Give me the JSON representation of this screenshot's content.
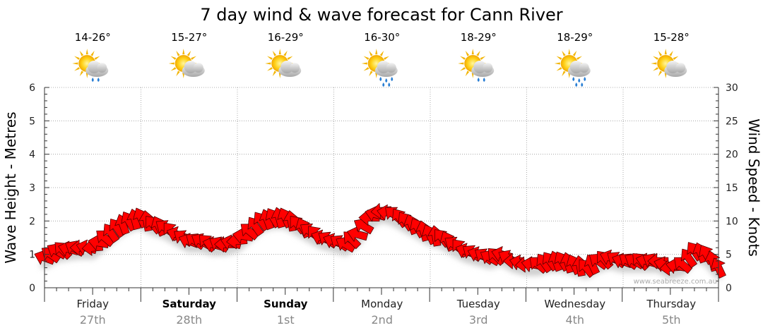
{
  "title": "7 day wind & wave forecast for Cann River",
  "watermark": "www.seabreeze.com.au",
  "colors": {
    "arrow_fill": "#ff0000",
    "arrow_stroke": "#550000",
    "shadow": "#cccccc",
    "grid": "#999999",
    "day_date": "#888888"
  },
  "days": [
    {
      "name": "Friday",
      "date": "27th",
      "bold": false,
      "temp": "14-26°",
      "icon": "sun-cloud-showers-icon"
    },
    {
      "name": "Saturday",
      "date": "28th",
      "bold": true,
      "temp": "15-27°",
      "icon": "sun-cloud-icon"
    },
    {
      "name": "Sunday",
      "date": "1st",
      "bold": true,
      "temp": "16-29°",
      "icon": "sun-cloud-icon"
    },
    {
      "name": "Monday",
      "date": "2nd",
      "bold": false,
      "temp": "16-30°",
      "icon": "sun-cloud-rain-icon"
    },
    {
      "name": "Tuesday",
      "date": "3rd",
      "bold": false,
      "temp": "18-29°",
      "icon": "sun-cloud-showers-icon"
    },
    {
      "name": "Wednesday",
      "date": "4th",
      "bold": false,
      "temp": "18-29°",
      "icon": "sun-cloud-rain-icon"
    },
    {
      "name": "Thursday",
      "date": "5th",
      "bold": false,
      "temp": "15-28°",
      "icon": "sun-cloud-icon"
    }
  ],
  "chart_data": {
    "type": "line",
    "title": "7 day wind & wave forecast for Cann River",
    "ylabel": "Wave Height - Metres",
    "y2label": "Wind Speed - Knots",
    "ylim": [
      0,
      6
    ],
    "y2lim": [
      0,
      30
    ],
    "yticks": [
      0,
      1,
      2,
      3,
      4,
      5,
      6
    ],
    "y2ticks": [
      0,
      5,
      10,
      15,
      20,
      25,
      30
    ],
    "grid": true,
    "x_hours": [
      0,
      168
    ],
    "series": [
      {
        "name": "Wind Speed - Knots",
        "marker": "arrow",
        "points": [
          {
            "h": 0,
            "v": 4.5
          },
          {
            "h": 3,
            "v": 5.5
          },
          {
            "h": 6,
            "v": 5.8
          },
          {
            "h": 9,
            "v": 6
          },
          {
            "h": 12,
            "v": 6
          },
          {
            "h": 15,
            "v": 7.5
          },
          {
            "h": 18,
            "v": 9
          },
          {
            "h": 21,
            "v": 10
          },
          {
            "h": 24,
            "v": 10.5
          },
          {
            "h": 27,
            "v": 9.5
          },
          {
            "h": 30,
            "v": 9
          },
          {
            "h": 33,
            "v": 8
          },
          {
            "h": 36,
            "v": 7
          },
          {
            "h": 39,
            "v": 7
          },
          {
            "h": 42,
            "v": 6.5
          },
          {
            "h": 45,
            "v": 6.5
          },
          {
            "h": 48,
            "v": 7
          },
          {
            "h": 51,
            "v": 8.5
          },
          {
            "h": 54,
            "v": 10
          },
          {
            "h": 57,
            "v": 10.5
          },
          {
            "h": 60,
            "v": 10.5
          },
          {
            "h": 63,
            "v": 9.5
          },
          {
            "h": 66,
            "v": 8.5
          },
          {
            "h": 69,
            "v": 7.5
          },
          {
            "h": 72,
            "v": 7
          },
          {
            "h": 75,
            "v": 6.5
          },
          {
            "h": 78,
            "v": 8
          },
          {
            "h": 81,
            "v": 10.5
          },
          {
            "h": 84,
            "v": 11.5
          },
          {
            "h": 87,
            "v": 11
          },
          {
            "h": 90,
            "v": 10
          },
          {
            "h": 93,
            "v": 9
          },
          {
            "h": 96,
            "v": 8
          },
          {
            "h": 99,
            "v": 7.5
          },
          {
            "h": 102,
            "v": 6.5
          },
          {
            "h": 105,
            "v": 5.5
          },
          {
            "h": 108,
            "v": 5
          },
          {
            "h": 111,
            "v": 4.5
          },
          {
            "h": 114,
            "v": 5
          },
          {
            "h": 117,
            "v": 4
          },
          {
            "h": 120,
            "v": 3.5
          },
          {
            "h": 123,
            "v": 3.5
          },
          {
            "h": 126,
            "v": 4
          },
          {
            "h": 129,
            "v": 4
          },
          {
            "h": 132,
            "v": 3.5
          },
          {
            "h": 135,
            "v": 3
          },
          {
            "h": 138,
            "v": 4
          },
          {
            "h": 141,
            "v": 4.5
          },
          {
            "h": 144,
            "v": 4
          },
          {
            "h": 147,
            "v": 4
          },
          {
            "h": 150,
            "v": 4
          },
          {
            "h": 153,
            "v": 4
          },
          {
            "h": 156,
            "v": 3
          },
          {
            "h": 159,
            "v": 3.5
          },
          {
            "h": 162,
            "v": 5.5
          },
          {
            "h": 165,
            "v": 5
          },
          {
            "h": 168,
            "v": 3
          }
        ]
      }
    ]
  }
}
